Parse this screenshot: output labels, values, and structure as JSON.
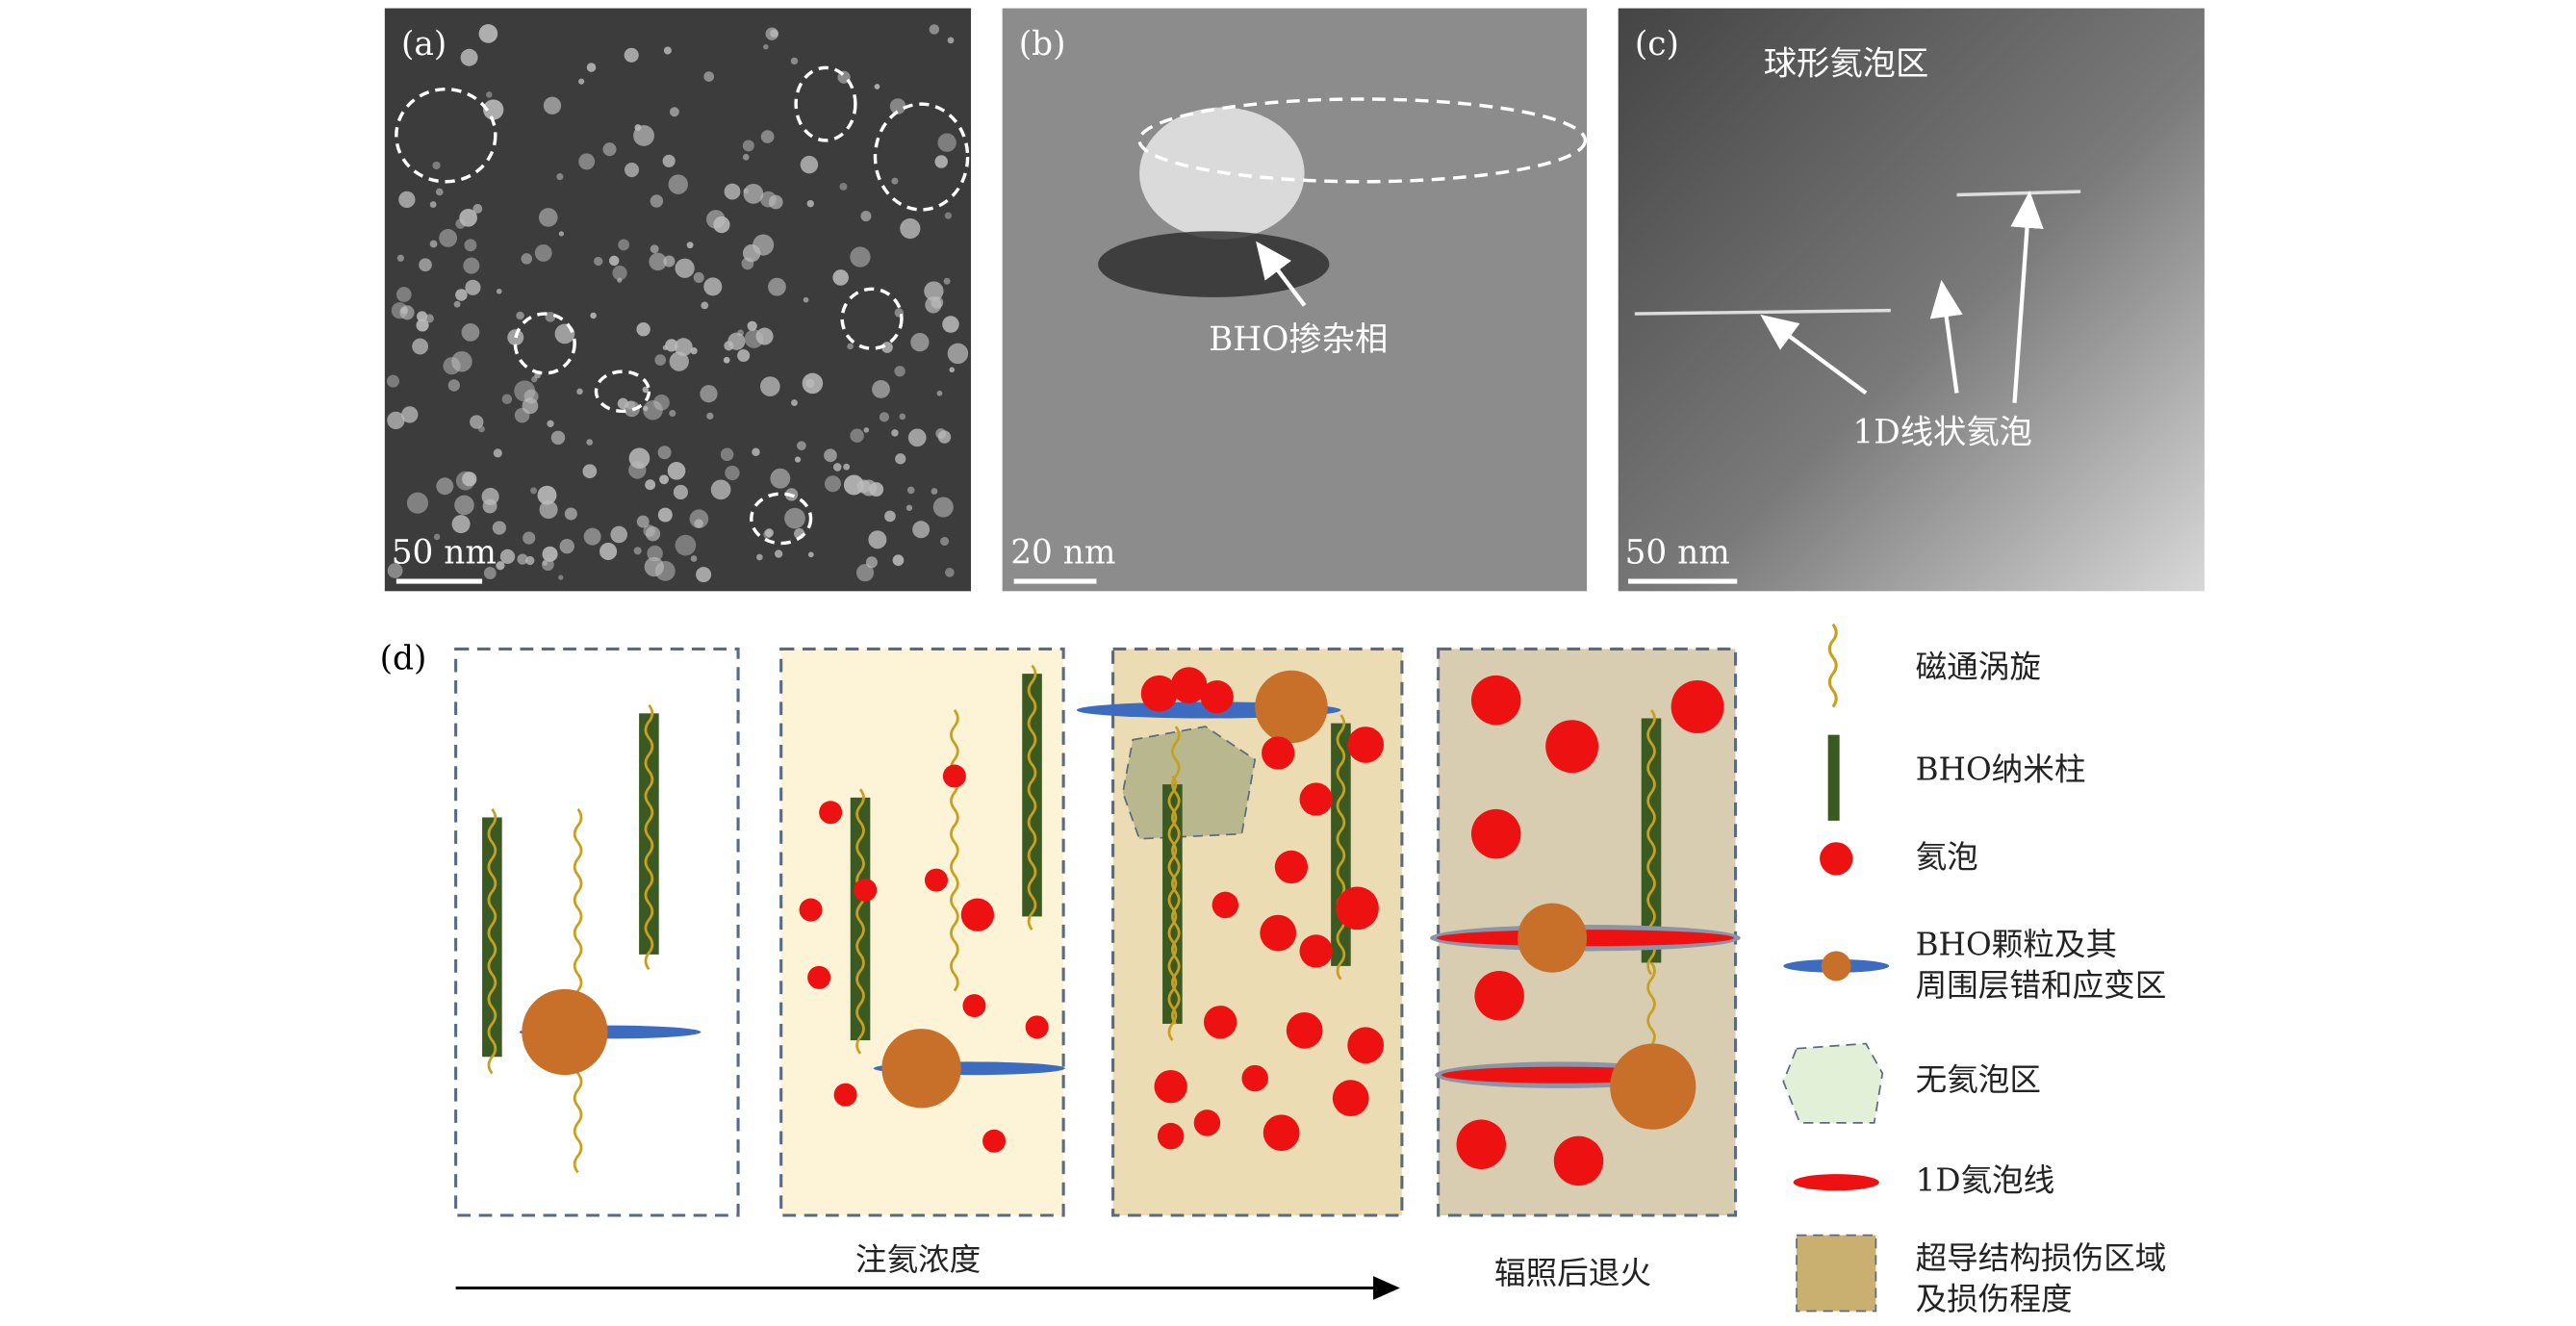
{
  "panels": [
    {
      "label": "(a)",
      "scale_bar": "50 nm"
    },
    {
      "label": "(b)",
      "scale_bar": "20 nm",
      "annotation": "BHO掺杂相"
    },
    {
      "label": "(c)",
      "scale_bar": "50 nm",
      "annotations": [
        "球形氦泡区",
        "1D线状氦泡"
      ]
    }
  ],
  "schematic": {
    "label": "(d)",
    "arrow_label": "注氦浓度",
    "anneal_label": "辐照后退火"
  },
  "legend": [
    {
      "lines": [
        "磁通涡旋"
      ]
    },
    {
      "lines": [
        "BHO纳米柱"
      ]
    },
    {
      "lines": [
        "氦泡"
      ]
    },
    {
      "lines": [
        "BHO颗粒及其",
        "周围层错和应变区"
      ]
    },
    {
      "lines": [
        "无氦泡区"
      ]
    },
    {
      "lines": [
        "1D氦泡线"
      ]
    },
    {
      "lines": [
        "超导结构损伤区域",
        "及损伤程度"
      ]
    }
  ]
}
